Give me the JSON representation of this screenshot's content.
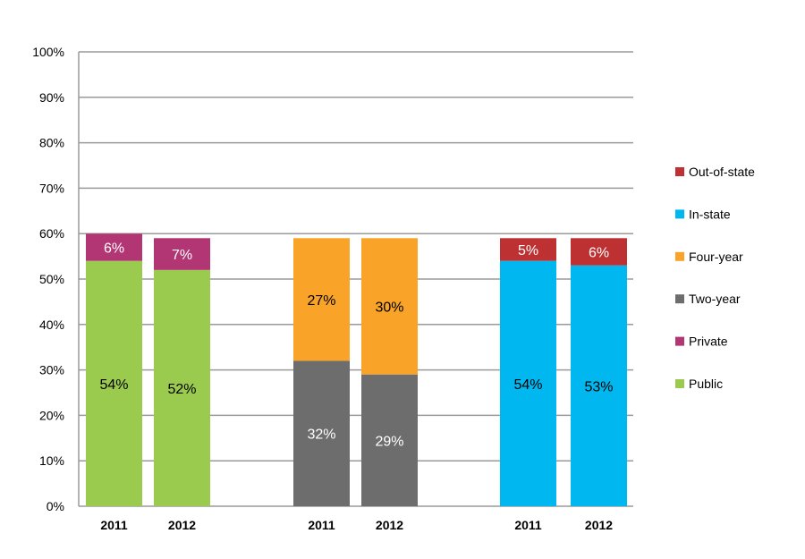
{
  "chart_data": {
    "type": "bar",
    "stacked": true,
    "ylim": [
      0,
      100
    ],
    "yticks": [
      "0%",
      "10%",
      "20%",
      "30%",
      "40%",
      "50%",
      "60%",
      "70%",
      "80%",
      "90%",
      "100%"
    ],
    "grid": true,
    "legend_placement": "right",
    "groups": [
      {
        "categories": [
          "2011",
          "2012"
        ],
        "series": [
          {
            "name": "Public",
            "color": "#9BCB4E",
            "values": [
              54,
              52
            ],
            "labels": [
              "54%",
              "52%"
            ],
            "label_color": "#000000"
          },
          {
            "name": "Private",
            "color": "#B23574",
            "values": [
              6,
              7
            ],
            "labels": [
              "6%",
              "7%"
            ],
            "label_color": "#ffffff"
          }
        ]
      },
      {
        "categories": [
          "2011",
          "2012"
        ],
        "series": [
          {
            "name": "Two-year",
            "color": "#6D6D6D",
            "values": [
              32,
              29
            ],
            "labels": [
              "32%",
              "29%"
            ],
            "label_color": "#ffffff"
          },
          {
            "name": "Four-year",
            "color": "#F9A428",
            "values": [
              27,
              30
            ],
            "labels": [
              "27%",
              "30%"
            ],
            "label_color": "#000000"
          }
        ]
      },
      {
        "categories": [
          "2011",
          "2012"
        ],
        "series": [
          {
            "name": "In-state",
            "color": "#00B8EF",
            "values": [
              54,
              53
            ],
            "labels": [
              "54%",
              "53%"
            ],
            "label_color": "#000000"
          },
          {
            "name": "Out-of-state",
            "color": "#BE3133",
            "values": [
              5,
              6
            ],
            "labels": [
              "5%",
              "6%"
            ],
            "label_color": "#ffffff"
          }
        ]
      }
    ],
    "legend": [
      {
        "name": "Out-of-state",
        "color": "#BE3133"
      },
      {
        "name": "In-state",
        "color": "#00B8EF"
      },
      {
        "name": "Four-year",
        "color": "#F9A428"
      },
      {
        "name": "Two-year",
        "color": "#6D6D6D"
      },
      {
        "name": "Private",
        "color": "#B23574"
      },
      {
        "name": "Public",
        "color": "#9BCB4E"
      }
    ]
  }
}
